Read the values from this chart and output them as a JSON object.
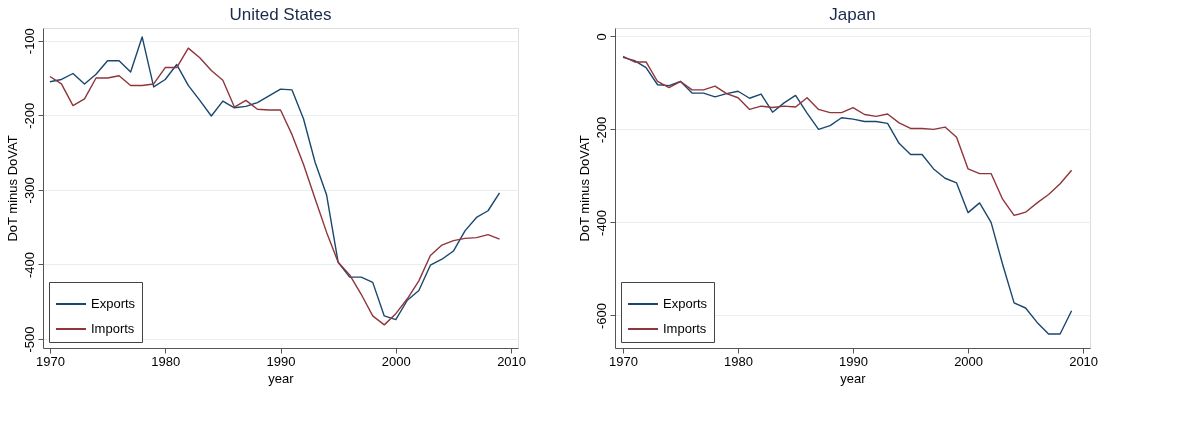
{
  "chart_data": [
    {
      "type": "line",
      "title": "United States",
      "xlabel": "year",
      "ylabel": "DoT minus DoVAT",
      "x": [
        1970,
        1971,
        1972,
        1973,
        1974,
        1975,
        1976,
        1977,
        1978,
        1979,
        1980,
        1981,
        1982,
        1983,
        1984,
        1985,
        1986,
        1987,
        1988,
        1989,
        1990,
        1991,
        1992,
        1993,
        1994,
        1995,
        1996,
        1997,
        1998,
        1999,
        2000,
        2001,
        2002,
        2003,
        2004,
        2005,
        2006,
        2007,
        2008,
        2009
      ],
      "series": [
        {
          "name": "Exports",
          "color": "#1a476f",
          "values": [
            -155,
            -152,
            -144,
            -158,
            -145,
            -127,
            -127,
            -142,
            -95,
            -162,
            -152,
            -132,
            -160,
            -180,
            -201,
            -181,
            -190,
            -188,
            -183,
            -174,
            -165,
            -166,
            -205,
            -263,
            -307,
            -397,
            -417,
            -417,
            -424,
            -469,
            -474,
            -448,
            -435,
            -401,
            -393,
            -382,
            -355,
            -337,
            -328,
            -304
          ]
        },
        {
          "name": "Imports",
          "color": "#90353b",
          "values": [
            -148,
            -158,
            -187,
            -178,
            -150,
            -150,
            -147,
            -160,
            -160,
            -158,
            -136,
            -136,
            -110,
            -123,
            -140,
            -153,
            -189,
            -180,
            -192,
            -193,
            -193,
            -226,
            -266,
            -312,
            -357,
            -397,
            -414,
            -440,
            -469,
            -481,
            -466,
            -446,
            -422,
            -388,
            -374,
            -368,
            -365,
            -364,
            -360,
            -366
          ]
        }
      ],
      "xlim": [
        1969.4,
        2010.6
      ],
      "xticks": [
        1970,
        1980,
        1990,
        2000,
        2010
      ],
      "ylim": [
        -512,
        -83
      ],
      "yticks": [
        -500,
        -400,
        -300,
        -200,
        -100
      ],
      "grid": "y",
      "legend": "bottom left",
      "marker": "none",
      "line_style": "solid"
    },
    {
      "type": "line",
      "title": "Japan",
      "xlabel": "year",
      "ylabel": "DoT minus DoVAT",
      "x": [
        1970,
        1971,
        1972,
        1973,
        1974,
        1975,
        1976,
        1977,
        1978,
        1979,
        1980,
        1981,
        1982,
        1983,
        1984,
        1985,
        1986,
        1987,
        1988,
        1989,
        1990,
        1991,
        1992,
        1993,
        1994,
        1995,
        1996,
        1997,
        1998,
        1999,
        2000,
        2001,
        2002,
        2003,
        2004,
        2005,
        2006,
        2007,
        2008,
        2009
      ],
      "series": [
        {
          "name": "Exports",
          "color": "#1a476f",
          "values": [
            -45,
            -52,
            -67,
            -104,
            -106,
            -97,
            -122,
            -122,
            -130,
            -123,
            -118,
            -133,
            -124,
            -163,
            -143,
            -127,
            -165,
            -200,
            -192,
            -175,
            -178,
            -183,
            -183,
            -187,
            -230,
            -254,
            -254,
            -285,
            -305,
            -315,
            -379,
            -358,
            -400,
            -490,
            -573,
            -584,
            -615,
            -640,
            -640,
            -590
          ]
        },
        {
          "name": "Imports",
          "color": "#90353b",
          "values": [
            -43,
            -55,
            -55,
            -97,
            -110,
            -97,
            -115,
            -115,
            -107,
            -123,
            -132,
            -157,
            -150,
            -153,
            -150,
            -152,
            -132,
            -157,
            -164,
            -164,
            -153,
            -168,
            -172,
            -167,
            -186,
            -198,
            -198,
            -200,
            -195,
            -217,
            -285,
            -295,
            -295,
            -350,
            -385,
            -378,
            -358,
            -340,
            -317,
            -288
          ]
        }
      ],
      "xlim": [
        1969.3,
        2010.6
      ],
      "xticks": [
        1970,
        1980,
        1990,
        2000,
        2010
      ],
      "ylim": [
        -670,
        18
      ],
      "yticks": [
        -600,
        -400,
        -200,
        0
      ],
      "grid": "y",
      "legend": "bottom left",
      "marker": "none",
      "line_style": "solid"
    }
  ]
}
